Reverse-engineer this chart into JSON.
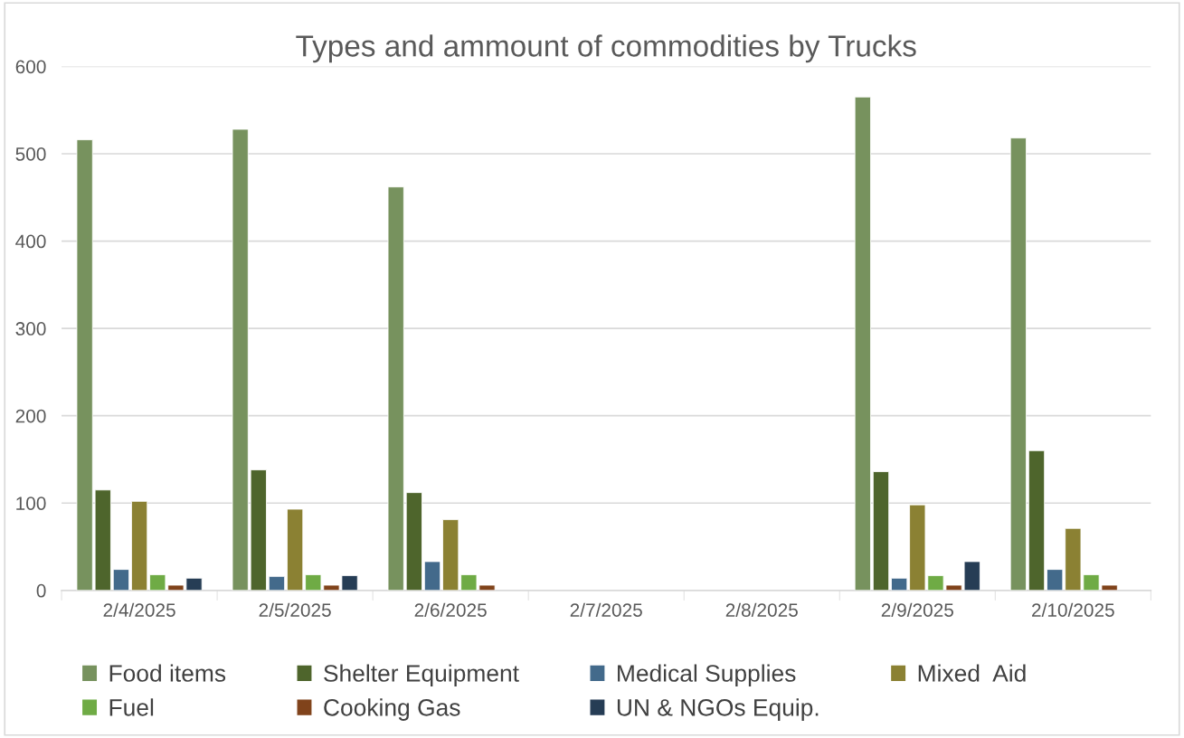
{
  "chart_data": {
    "type": "bar",
    "title": "Types and ammount of commodities by Trucks",
    "categories": [
      "2/4/2025",
      "2/5/2025",
      "2/6/2025",
      "2/7/2025",
      "2/8/2025",
      "2/9/2025",
      "2/10/2025"
    ],
    "series": [
      {
        "name": "Food items",
        "color": "#77925e",
        "values": [
          516,
          528,
          462,
          null,
          null,
          565,
          518
        ]
      },
      {
        "name": "Shelter Equipment",
        "color": "#4e652c",
        "values": [
          115,
          138,
          112,
          null,
          null,
          136,
          160
        ]
      },
      {
        "name": "Medical Supplies",
        "color": "#436a8b",
        "values": [
          24,
          16,
          33,
          null,
          null,
          14,
          24
        ]
      },
      {
        "name": "Mixed  Aid",
        "color": "#8b8133",
        "values": [
          102,
          93,
          81,
          null,
          null,
          98,
          71
        ]
      },
      {
        "name": "Fuel",
        "color": "#6fab45",
        "values": [
          18,
          18,
          18,
          null,
          null,
          17,
          18
        ]
      },
      {
        "name": "Cooking Gas",
        "color": "#80431b",
        "values": [
          6,
          6,
          6,
          null,
          null,
          6,
          6
        ]
      },
      {
        "name": "UN & NGOs Equip.",
        "color": "#263d55",
        "values": [
          14,
          17,
          null,
          null,
          null,
          33,
          null
        ]
      }
    ],
    "ylim": [
      0,
      600
    ],
    "yticks": [
      0,
      100,
      200,
      300,
      400,
      500,
      600
    ],
    "grid": "y",
    "legend": "bottom"
  }
}
